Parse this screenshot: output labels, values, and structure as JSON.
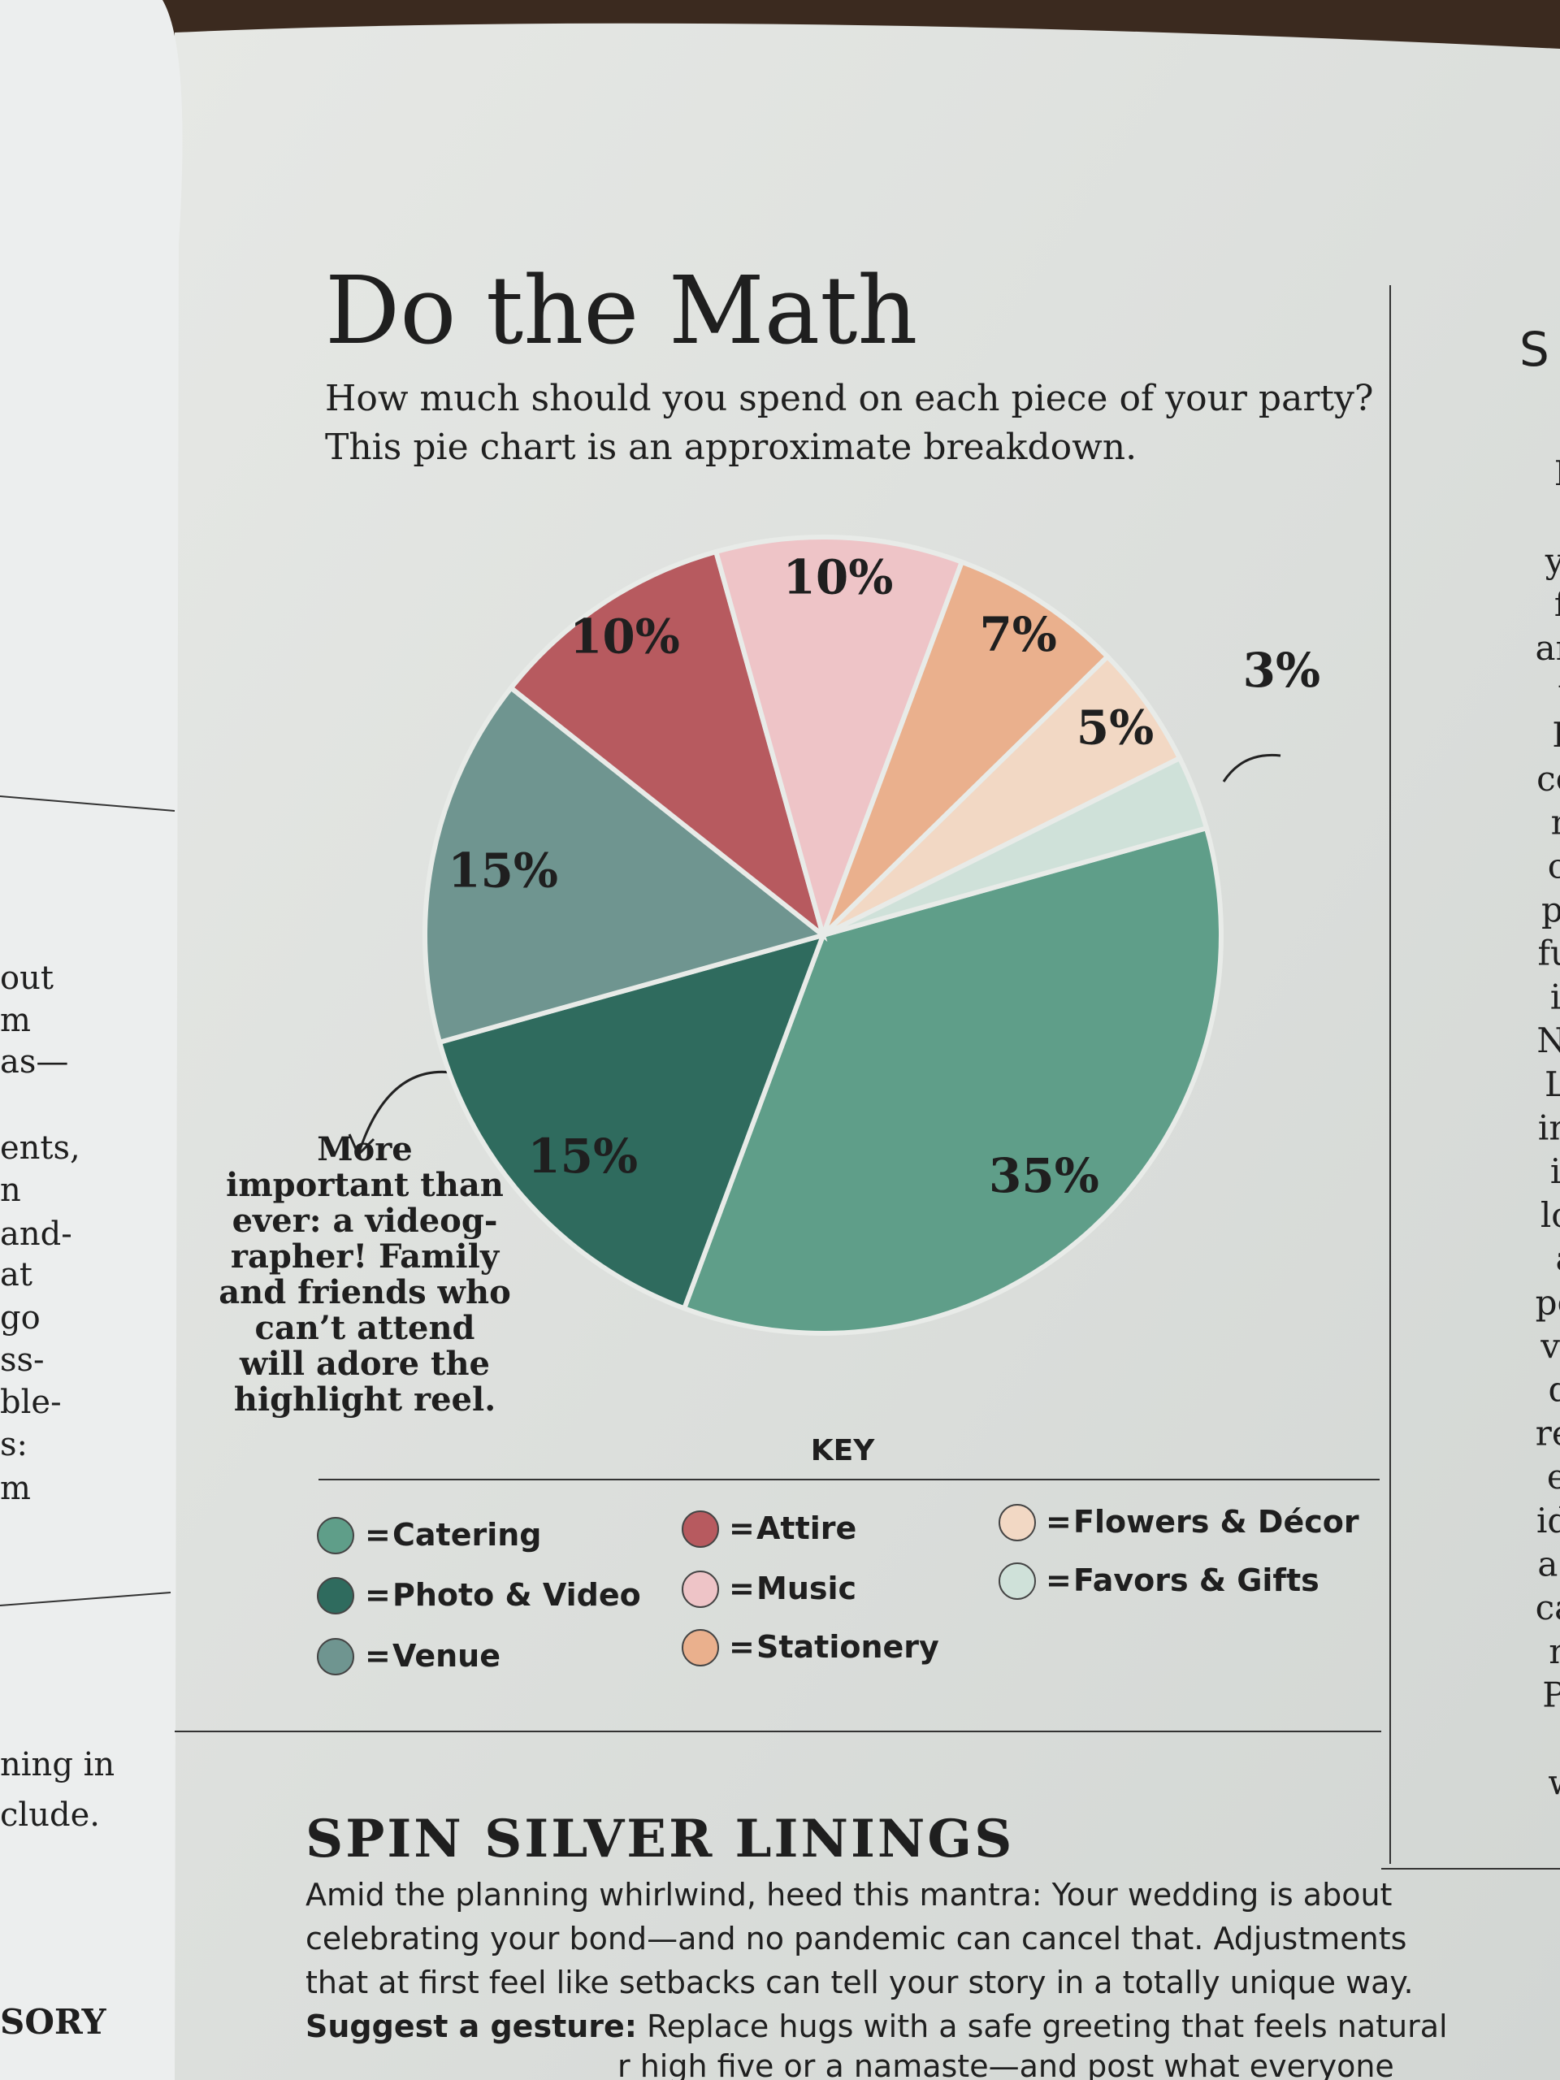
{
  "chart_data": {
    "type": "pie",
    "title": "Do the Math",
    "subtitle": [
      "How much should you spend on each piece of your party?",
      "This pie chart is an approximate breakdown."
    ],
    "categories": [
      "Catering",
      "Photo & Video",
      "Venue",
      "Attire",
      "Music",
      "Stationery",
      "Flowers & Décor",
      "Favors & Gifts"
    ],
    "values": [
      35,
      15,
      15,
      10,
      10,
      7,
      5,
      3
    ],
    "value_labels": [
      "35%",
      "15%",
      "15%",
      "10%",
      "10%",
      "7%",
      "5%",
      "3%"
    ],
    "colors": [
      "#5f9e89",
      "#2f6b5e",
      "#6f9590",
      "#b75a5f",
      "#eec4c7",
      "#eab08d",
      "#f2d8c4",
      "#cfe1d9"
    ],
    "legend_title": "KEY",
    "legend_separator": "=",
    "annotation": [
      "More",
      "important than",
      "ever: a videog-",
      "rapher! Family",
      "and friends who",
      "can’t attend",
      "will adore the",
      "highlight reel."
    ]
  },
  "article": {
    "heading": "SPIN SILVER LININGS",
    "lines": [
      "Amid the planning whirlwind, heed this mantra: Your wedding is about",
      "celebrating your bond—and no pandemic can cancel that. Adjustments",
      "that at first feel like setbacks can tell your story in a totally unique way."
    ],
    "tip_label": "Suggest a gesture:",
    "tip_text": "Replace hugs with a safe greeting that feels natural",
    "tip_cut": "r high five or a namaste—and post what everyone"
  },
  "left_column": [
    "out",
    "m",
    "as—",
    "ents,",
    "n",
    "and-",
    "at",
    "go",
    "ss-",
    "ble-",
    "s:",
    "m",
    "ning in",
    "clude.",
    "SORY"
  ],
  "right_column": {
    "heading": "S",
    "lines": [
      "If yo",
      "or c",
      "you h",
      "fallb",
      "and ve",
      "wec",
      "Doul",
      "contra",
      "maje",
      "claus",
      "portic",
      "fundal",
      "in tir",
      "Norris",
      "Legal",
      "insura",
      "itly c",
      "losses",
      "a kn",
      "policie",
      "venue",
      "due t",
      "restric",
      "ering",
      "identif",
      "a pare",
      "catche",
      "not a",
      "Price,",
      "at fi",
      "webs"
    ]
  }
}
